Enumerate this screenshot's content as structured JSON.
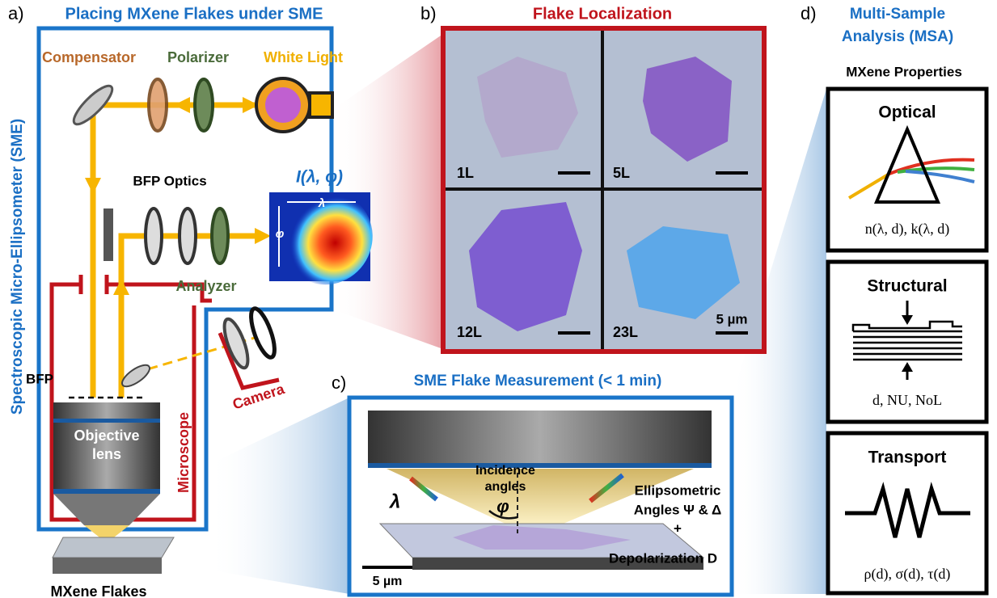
{
  "panel_a": {
    "label": "a)",
    "title": "Placing MXene Flakes under SME",
    "side_label": "Spectroscopic Micro-Ellipsometer (SME)",
    "compensator": "Compensator",
    "polarizer": "Polarizer",
    "white_light": "White Light",
    "bfp_optics": "BFP Optics",
    "intensity": "I(λ, φ)",
    "lambda": "λ",
    "phi": "φ",
    "analyzer": "Analyzer",
    "bfp": "BFP",
    "objective": [
      "Objective",
      "lens"
    ],
    "microscope": "Microscope",
    "camera": "Camera",
    "flakes": "MXene Flakes"
  },
  "panel_b": {
    "label": "b)",
    "title": "Flake Localization",
    "layers": [
      "1L",
      "5L",
      "12L",
      "23L"
    ],
    "scale": "5 µm"
  },
  "panel_c": {
    "label": "c)",
    "title": "SME Flake Measurement (< 1 min)",
    "incidence": [
      "Incidence",
      "angles"
    ],
    "phi": "φ",
    "lambda": "λ",
    "outputs": [
      "Ellipsometric",
      "Angles Ψ & Δ",
      "+",
      "Depolarization D"
    ],
    "scale": "5 µm"
  },
  "panel_d": {
    "label": "d)",
    "title": [
      "Multi-Sample",
      "Analysis (MSA)"
    ],
    "subtitle": "MXene Properties",
    "boxes": [
      {
        "name": "Optical",
        "formula": "n(λ, d), k(λ, d)"
      },
      {
        "name": "Structural",
        "formula": "d, NU, NoL"
      },
      {
        "name": "Transport",
        "formula": "ρ(d), σ(d), τ(d)"
      }
    ]
  }
}
